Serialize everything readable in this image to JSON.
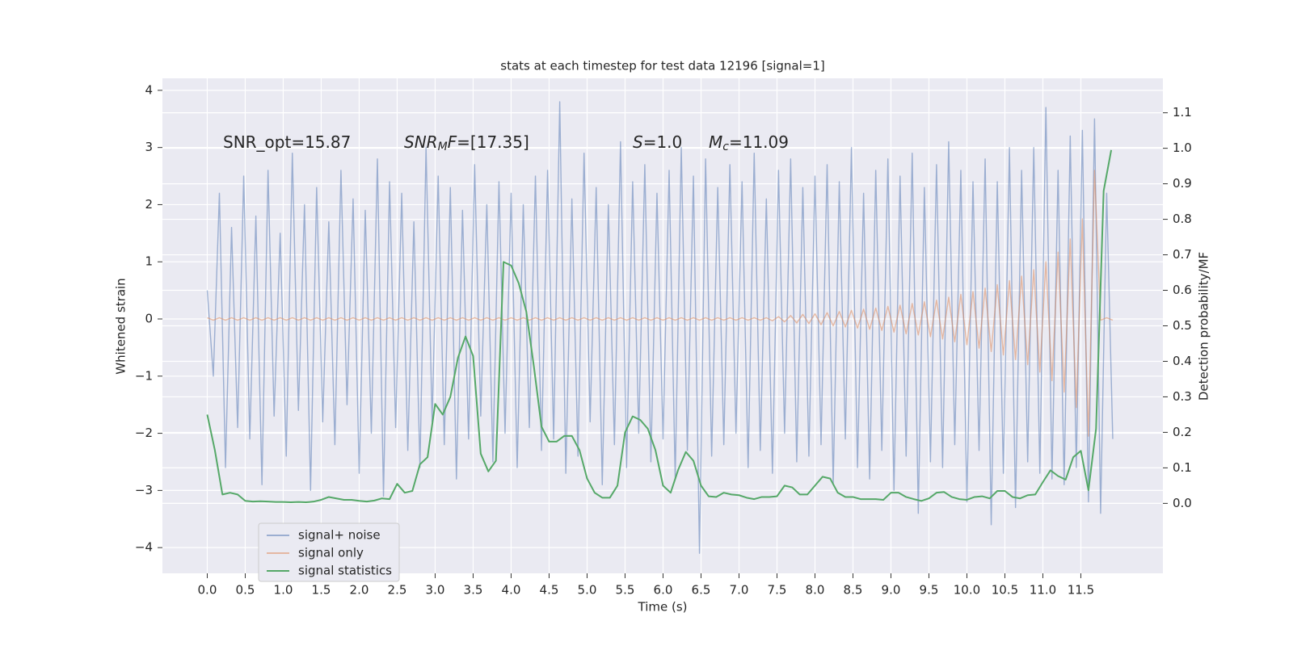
{
  "chart_data": {
    "type": "line",
    "title": "stats at each timestep for test data 12196 [signal=1]",
    "xlabel": "Time (s)",
    "ylabel": "Whitened strain",
    "y2label": "Detection probability/MF",
    "annotations": [
      {
        "parts": [
          "SNR_opt=15.87"
        ]
      },
      {
        "parts": [
          "SNR",
          "M",
          "F",
          "=[17.35]"
        ]
      },
      {
        "parts": [
          "S",
          "=1.0"
        ]
      },
      {
        "parts": [
          "M",
          "c",
          "=11.09"
        ]
      }
    ],
    "grid": true,
    "legend": "lower left",
    "xlim": [
      -0.59,
      12.58
    ],
    "ylim": [
      -4.45,
      4.21
    ],
    "y2lim": [
      -0.197,
      1.197
    ],
    "xticks": [
      {
        "value": 0,
        "label": "0.0"
      },
      0.5,
      {
        "value": 1,
        "label": "1.0"
      },
      1.5,
      {
        "value": 2,
        "label": "2.0"
      },
      2.5,
      {
        "value": 3,
        "label": "3.0"
      },
      3.5,
      {
        "value": 4,
        "label": "4.0"
      },
      4.5,
      {
        "value": 5,
        "label": "5.0"
      },
      5.5,
      {
        "value": 6,
        "label": "6.0"
      },
      6.5,
      {
        "value": 7,
        "label": "7.0"
      },
      7.5,
      {
        "value": 8,
        "label": "8.0"
      },
      8.5,
      {
        "value": 9,
        "label": "9.0"
      },
      9.5,
      {
        "value": 10,
        "label": "10.0"
      },
      10.5,
      {
        "value": 11,
        "label": "11.0"
      },
      11.5
    ],
    "yticks": [
      {
        "value": -4,
        "label": "−4"
      },
      {
        "value": -3,
        "label": "−3"
      },
      {
        "value": -2,
        "label": "−2"
      },
      {
        "value": -1,
        "label": "−1"
      },
      0,
      1,
      2,
      3,
      4
    ],
    "y2ticks": [
      {
        "value": 0,
        "label": "0.0"
      },
      0.1,
      0.2,
      0.3,
      0.4,
      0.5,
      0.6,
      0.7,
      0.8,
      0.9,
      {
        "value": 1,
        "label": "1.0"
      },
      1.1
    ],
    "x": [
      0,
      0.08,
      0.16,
      0.24,
      0.32,
      0.4,
      0.48,
      0.56,
      0.64,
      0.72,
      0.8,
      0.88,
      0.96,
      1.04,
      1.12,
      1.2,
      1.28,
      1.36,
      1.44,
      1.52,
      1.6,
      1.68,
      1.76,
      1.84,
      1.92,
      2,
      2.08,
      2.16,
      2.24,
      2.32,
      2.4,
      2.48,
      2.56,
      2.64,
      2.72,
      2.8,
      2.88,
      2.96,
      3.04,
      3.12,
      3.2,
      3.28,
      3.36,
      3.44,
      3.52,
      3.6,
      3.68,
      3.76,
      3.84,
      3.92,
      4,
      4.08,
      4.16,
      4.24,
      4.32,
      4.4,
      4.48,
      4.56,
      4.64,
      4.72,
      4.8,
      4.88,
      4.96,
      5.04,
      5.12,
      5.2,
      5.28,
      5.36,
      5.44,
      5.52,
      5.6,
      5.68,
      5.76,
      5.84,
      5.92,
      6,
      6.08,
      6.16,
      6.24,
      6.32,
      6.4,
      6.48,
      6.56,
      6.64,
      6.72,
      6.8,
      6.88,
      6.96,
      7.04,
      7.12,
      7.2,
      7.28,
      7.36,
      7.44,
      7.52,
      7.6,
      7.68,
      7.76,
      7.84,
      7.92,
      8,
      8.08,
      8.16,
      8.24,
      8.32,
      8.4,
      8.48,
      8.56,
      8.64,
      8.72,
      8.8,
      8.88,
      8.96,
      9.04,
      9.12,
      9.2,
      9.28,
      9.36,
      9.44,
      9.52,
      9.6,
      9.68,
      9.76,
      9.84,
      9.92,
      10,
      10.08,
      10.16,
      10.24,
      10.32,
      10.4,
      10.48,
      10.56,
      10.64,
      10.72,
      10.8,
      10.88,
      10.96,
      11.04,
      11.12,
      11.2,
      11.28,
      11.36,
      11.44,
      11.52,
      11.6,
      11.68,
      11.76,
      11.84,
      11.92
    ],
    "series": [
      {
        "name": "signal+ noise",
        "color": "#4c72b0",
        "alpha": 0.5,
        "values": [
          0.5,
          -1.0,
          2.2,
          -2.6,
          1.6,
          -1.9,
          2.5,
          -2.1,
          1.8,
          -2.9,
          2.6,
          -1.7,
          1.5,
          -2.4,
          2.9,
          -1.6,
          2.0,
          -3.0,
          2.3,
          -1.8,
          1.7,
          -2.2,
          2.6,
          -1.5,
          2.1,
          -2.7,
          1.9,
          -2.0,
          2.8,
          -3.1,
          2.4,
          -1.9,
          2.2,
          -2.3,
          1.7,
          -2.6,
          3.0,
          -1.8,
          2.5,
          -2.2,
          2.3,
          -2.8,
          1.9,
          -2.1,
          2.7,
          -1.7,
          2.0,
          -2.5,
          2.4,
          -2.0,
          2.2,
          -2.6,
          2.0,
          -1.9,
          2.5,
          -2.3,
          2.6,
          -2.1,
          3.8,
          -2.7,
          2.1,
          -2.4,
          2.9,
          -1.8,
          2.3,
          -2.9,
          2.0,
          -2.2,
          3.1,
          -2.6,
          2.4,
          -2.0,
          2.7,
          -2.5,
          2.2,
          -2.1,
          2.6,
          -2.8,
          3.0,
          -2.3,
          2.5,
          -4.1,
          2.8,
          -2.4,
          2.3,
          -2.2,
          2.7,
          -2.0,
          2.4,
          -2.6,
          2.9,
          -2.3,
          2.1,
          -2.7,
          2.6,
          -2.0,
          2.8,
          -2.5,
          2.3,
          -2.4,
          2.5,
          -2.2,
          2.7,
          -2.9,
          2.4,
          -2.1,
          3.0,
          -2.6,
          2.2,
          -2.8,
          2.6,
          -2.3,
          2.8,
          -3.0,
          2.5,
          -2.4,
          2.9,
          -3.4,
          2.3,
          -2.5,
          2.7,
          -2.6,
          3.1,
          -2.2,
          2.6,
          -3.2,
          2.4,
          -2.3,
          2.8,
          -3.6,
          2.4,
          -2.7,
          3.0,
          -3.3,
          2.6,
          -2.5,
          3.0,
          -2.7,
          3.7,
          -2.8,
          2.6,
          -2.9,
          3.2,
          -2.6,
          3.3,
          -3.2,
          3.5,
          -3.4,
          2.2,
          -2.1
        ]
      },
      {
        "name": "signal only",
        "color": "#dd8452",
        "alpha": 0.5,
        "values": [
          0.02,
          -0.02,
          0.02,
          -0.02,
          0.02,
          -0.02,
          0.02,
          -0.02,
          0.02,
          -0.02,
          0.02,
          -0.02,
          0.02,
          -0.02,
          0.02,
          -0.02,
          0.02,
          -0.02,
          0.02,
          -0.02,
          0.02,
          -0.02,
          0.02,
          -0.02,
          0.02,
          -0.02,
          0.02,
          -0.02,
          0.02,
          -0.02,
          0.02,
          -0.02,
          0.02,
          -0.02,
          0.02,
          -0.02,
          0.02,
          -0.02,
          0.02,
          -0.02,
          0.02,
          -0.02,
          0.02,
          -0.02,
          0.02,
          -0.02,
          0.02,
          -0.02,
          0.02,
          -0.02,
          0.02,
          -0.02,
          0.02,
          -0.02,
          0.02,
          -0.02,
          0.02,
          -0.02,
          0.02,
          -0.02,
          0.02,
          -0.02,
          0.02,
          -0.02,
          0.02,
          -0.02,
          0.02,
          -0.02,
          0.02,
          -0.02,
          0.02,
          -0.02,
          0.02,
          -0.02,
          0.02,
          -0.02,
          0.02,
          -0.02,
          0.02,
          -0.02,
          0.02,
          -0.02,
          0.02,
          -0.02,
          0.02,
          -0.02,
          0.02,
          -0.02,
          0.02,
          -0.02,
          0.02,
          -0.02,
          0.02,
          -0.03,
          0.04,
          -0.05,
          0.06,
          -0.07,
          0.08,
          -0.08,
          0.09,
          -0.1,
          0.11,
          -0.12,
          0.13,
          -0.14,
          0.15,
          -0.16,
          0.17,
          -0.18,
          0.19,
          -0.2,
          0.22,
          -0.23,
          0.24,
          -0.26,
          0.27,
          -0.28,
          0.3,
          -0.31,
          0.33,
          -0.35,
          0.38,
          -0.4,
          0.43,
          -0.45,
          0.48,
          -0.51,
          0.54,
          -0.57,
          0.6,
          -0.63,
          0.67,
          -0.71,
          0.75,
          -0.8,
          0.86,
          -0.93,
          1.0,
          -1.08,
          1.17,
          -1.28,
          1.4,
          -1.55,
          1.75,
          -2.05,
          2.6,
          -0.02,
          0.02,
          -0.02
        ]
      },
      {
        "name": "signal statistics",
        "color": "#55a868",
        "axis": "y2",
        "x": [
          0,
          0.1,
          0.2,
          0.3,
          0.4,
          0.5,
          0.6,
          0.7,
          0.8,
          0.9,
          1,
          1.1,
          1.2,
          1.3,
          1.4,
          1.5,
          1.6,
          1.7,
          1.8,
          1.9,
          2,
          2.1,
          2.2,
          2.3,
          2.4,
          2.5,
          2.6,
          2.7,
          2.8,
          2.9,
          3,
          3.1,
          3.2,
          3.3,
          3.4,
          3.5,
          3.6,
          3.7,
          3.8,
          3.9,
          4,
          4.1,
          4.2,
          4.3,
          4.4,
          4.5,
          4.6,
          4.7,
          4.8,
          4.9,
          5,
          5.1,
          5.2,
          5.3,
          5.4,
          5.5,
          5.6,
          5.7,
          5.8,
          5.9,
          6,
          6.1,
          6.2,
          6.3,
          6.4,
          6.5,
          6.6,
          6.7,
          6.8,
          6.9,
          7,
          7.1,
          7.2,
          7.3,
          7.4,
          7.5,
          7.6,
          7.7,
          7.8,
          7.9,
          8,
          8.1,
          8.2,
          8.3,
          8.4,
          8.5,
          8.6,
          8.7,
          8.8,
          8.9,
          9,
          9.1,
          9.2,
          9.3,
          9.4,
          9.5,
          9.6,
          9.7,
          9.8,
          9.9,
          10,
          10.1,
          10.2,
          10.3,
          10.4,
          10.5,
          10.6,
          10.7,
          10.8,
          10.9,
          11,
          11.1,
          11.2,
          11.3,
          11.4,
          11.5,
          11.6,
          11.7,
          11.8,
          11.9
        ],
        "values": [
          0.25,
          0.15,
          0.025,
          0.03,
          0.025,
          0.007,
          0.005,
          0.006,
          0.005,
          0.004,
          0.004,
          0.003,
          0.004,
          0.003,
          0.005,
          0.01,
          0.018,
          0.014,
          0.01,
          0.01,
          0.007,
          0.005,
          0.008,
          0.014,
          0.012,
          0.055,
          0.03,
          0.035,
          0.11,
          0.13,
          0.28,
          0.25,
          0.3,
          0.41,
          0.47,
          0.415,
          0.14,
          0.09,
          0.12,
          0.68,
          0.67,
          0.62,
          0.54,
          0.385,
          0.216,
          0.174,
          0.174,
          0.19,
          0.19,
          0.15,
          0.07,
          0.03,
          0.016,
          0.016,
          0.05,
          0.2,
          0.245,
          0.235,
          0.21,
          0.15,
          0.05,
          0.03,
          0.095,
          0.145,
          0.12,
          0.05,
          0.02,
          0.018,
          0.03,
          0.025,
          0.023,
          0.016,
          0.012,
          0.018,
          0.018,
          0.02,
          0.05,
          0.045,
          0.025,
          0.025,
          0.05,
          0.075,
          0.07,
          0.03,
          0.018,
          0.018,
          0.012,
          0.012,
          0.012,
          0.01,
          0.03,
          0.03,
          0.018,
          0.012,
          0.007,
          0.014,
          0.03,
          0.032,
          0.018,
          0.012,
          0.01,
          0.018,
          0.02,
          0.014,
          0.035,
          0.035,
          0.018,
          0.014,
          0.023,
          0.025,
          0.06,
          0.093,
          0.077,
          0.067,
          0.13,
          0.148,
          0.037,
          0.21,
          0.88,
          0.995
        ]
      }
    ]
  }
}
